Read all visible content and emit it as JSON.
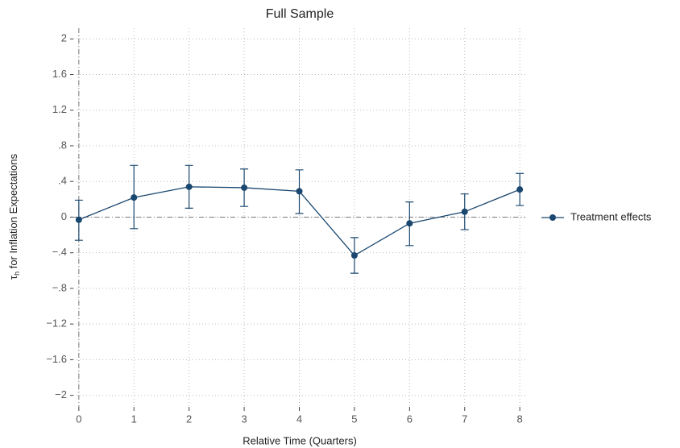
{
  "chart_data": {
    "type": "line",
    "title": "Full Sample",
    "xlabel": "Relative Time (Quarters)",
    "ylabel": {
      "symbol": "τ",
      "subscript": "h",
      "text": " for Inflation Expectations"
    },
    "x": [
      0,
      1,
      2,
      3,
      4,
      5,
      6,
      7,
      8
    ],
    "series": [
      {
        "name": "Treatment effects",
        "color": "#1a476f",
        "values": [
          -0.03,
          0.22,
          0.34,
          0.33,
          0.29,
          -0.43,
          -0.07,
          0.06,
          0.31
        ],
        "ci_low": [
          -0.26,
          -0.13,
          0.1,
          0.12,
          0.04,
          -0.63,
          -0.32,
          -0.14,
          0.13
        ],
        "ci_high": [
          0.19,
          0.58,
          0.58,
          0.54,
          0.53,
          -0.23,
          0.17,
          0.26,
          0.49
        ]
      }
    ],
    "xlim": [
      -0.1,
      8.1
    ],
    "xticks": [
      0,
      1,
      2,
      3,
      4,
      5,
      6,
      7,
      8
    ],
    "ylim": [
      -2.13,
      2.12
    ],
    "yticks": [
      {
        "value": -2,
        "label": "−2"
      },
      {
        "value": -1.6,
        "label": "−1.6"
      },
      {
        "value": -1.2,
        "label": "−1.2"
      },
      {
        "value": -0.8,
        "label": "−.8"
      },
      {
        "value": -0.4,
        "label": "−.4"
      },
      0,
      {
        "value": 0.4,
        "label": ".4"
      },
      {
        "value": 0.8,
        "label": ".8"
      },
      1.2,
      1.6,
      2
    ],
    "grid": true,
    "reference_lines": {
      "x": 0,
      "y": 0
    },
    "legend": "right"
  }
}
